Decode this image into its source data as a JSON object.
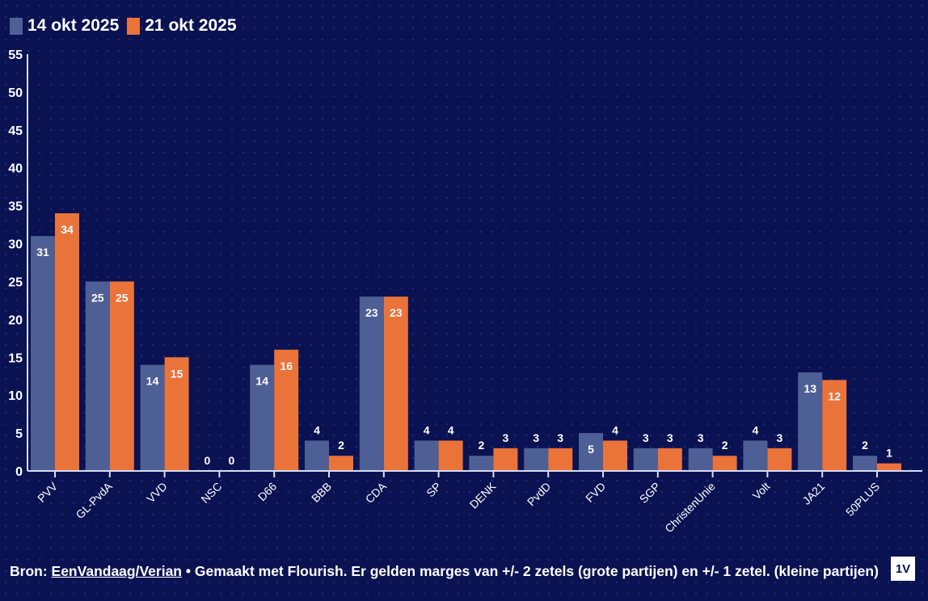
{
  "legend": [
    {
      "label": "14 okt 2025",
      "color": "#4e5f95"
    },
    {
      "label": "21 okt 2025",
      "color": "#ea733a"
    }
  ],
  "chart_data": {
    "type": "bar",
    "title": "",
    "xlabel": "",
    "ylabel": "",
    "ylim": [
      0,
      55
    ],
    "yticks": [
      0,
      5,
      10,
      15,
      20,
      25,
      30,
      35,
      40,
      45,
      50,
      55
    ],
    "grid": false,
    "legend_position": "top-left",
    "categories": [
      "PVV",
      "GL-PvdA",
      "VVD",
      "NSC",
      "D66",
      "BBB",
      "CDA",
      "SP",
      "DENK",
      "PvdD",
      "FVD",
      "SGP",
      "ChristenUnie",
      "Volt",
      "JA21",
      "50PLUS"
    ],
    "series": [
      {
        "name": "14 okt 2025",
        "color": "#4e5f95",
        "values": [
          31,
          25,
          14,
          0,
          14,
          4,
          23,
          4,
          2,
          3,
          5,
          3,
          3,
          4,
          13,
          2
        ]
      },
      {
        "name": "21 okt 2025",
        "color": "#ea733a",
        "values": [
          34,
          25,
          15,
          0,
          16,
          2,
          23,
          4,
          3,
          3,
          4,
          3,
          2,
          3,
          12,
          1
        ]
      }
    ]
  },
  "footer": {
    "prefix": "Bron: ",
    "source_link": "EenVandaag/Verian",
    "suffix": " • Gemaakt met Flourish. Er gelden marges van +/- 2 zetels (grote partijen) en +/- 1 zetel. (kleine partijen)"
  },
  "logo": {
    "text": "1V"
  }
}
